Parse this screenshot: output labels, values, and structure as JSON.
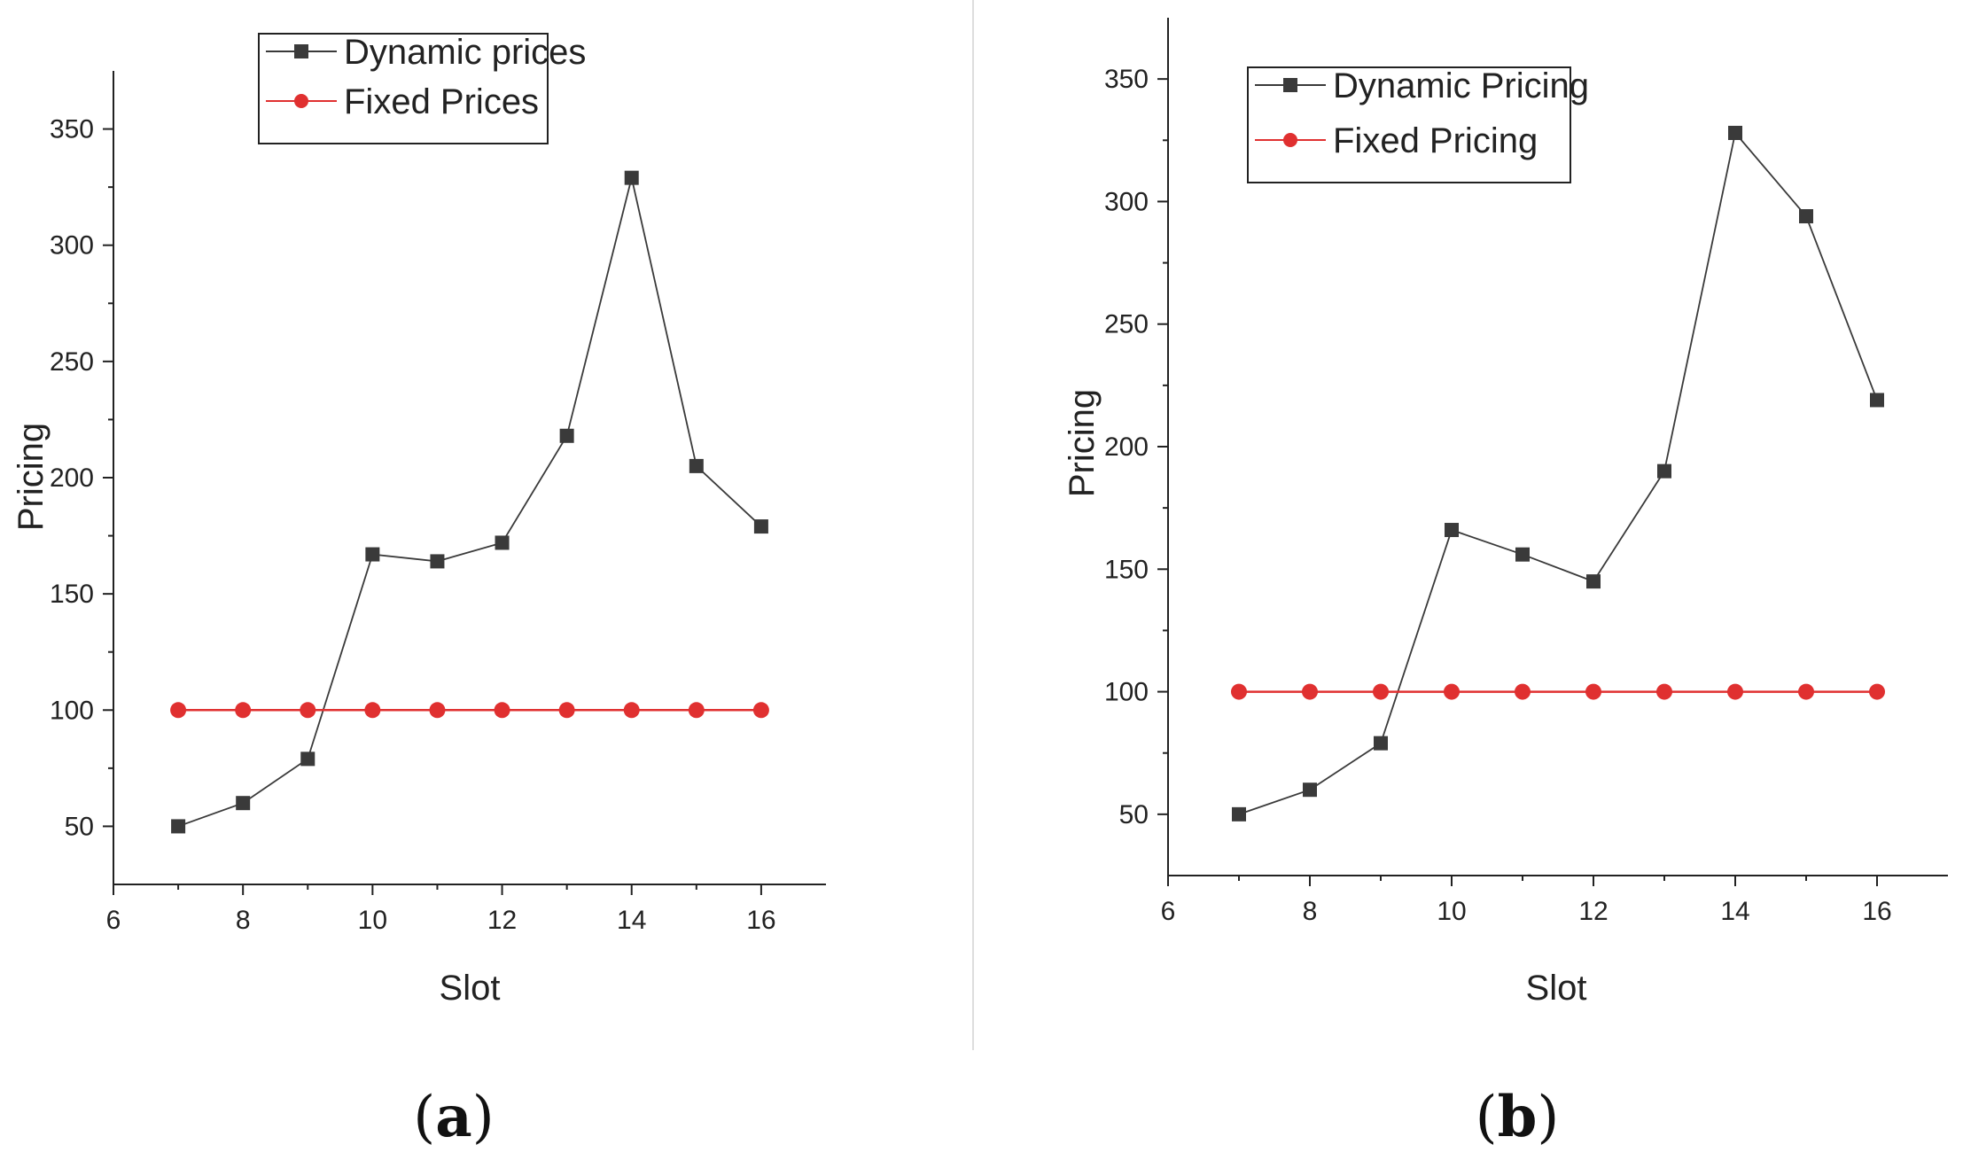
{
  "figure": {
    "divider_color": "#dddddd",
    "colors": {
      "dynamic": "#3a3a3a",
      "fixed": "#e03030",
      "axis": "#222222"
    }
  },
  "chart_data": [
    {
      "type": "line",
      "panel": "a",
      "panel_label": {
        "open": "(",
        "letter": "a",
        "close": ")"
      },
      "xlabel": "Slot",
      "ylabel": "Pricing",
      "xlim": [
        6,
        17
      ],
      "ylim": [
        25,
        375
      ],
      "x_ticks": [
        6,
        8,
        10,
        12,
        14,
        16
      ],
      "y_ticks": [
        50,
        100,
        150,
        200,
        250,
        300,
        350
      ],
      "legend_position": "top-center",
      "x": [
        7,
        8,
        9,
        10,
        11,
        12,
        13,
        14,
        15,
        16
      ],
      "series": [
        {
          "name": "Dynamic prices",
          "marker": "square",
          "color": "#3a3a3a",
          "values": [
            50,
            60,
            79,
            167,
            164,
            172,
            218,
            329,
            205,
            179
          ]
        },
        {
          "name": "Fixed Prices",
          "marker": "circle",
          "color": "#e03030",
          "values": [
            100,
            100,
            100,
            100,
            100,
            100,
            100,
            100,
            100,
            100
          ]
        }
      ]
    },
    {
      "type": "line",
      "panel": "b",
      "panel_label": {
        "open": "(",
        "letter": "b",
        "close": ")"
      },
      "xlabel": "Slot",
      "ylabel": "Pricing",
      "xlim": [
        6,
        17
      ],
      "ylim": [
        25,
        375
      ],
      "x_ticks": [
        6,
        8,
        10,
        12,
        14,
        16
      ],
      "y_ticks": [
        50,
        100,
        150,
        200,
        250,
        300,
        350
      ],
      "legend_position": "top-left",
      "x": [
        7,
        8,
        9,
        10,
        11,
        12,
        13,
        14,
        15,
        16
      ],
      "series": [
        {
          "name": "Dynamic Pricing",
          "marker": "square",
          "color": "#3a3a3a",
          "values": [
            50,
            60,
            79,
            166,
            156,
            145,
            190,
            328,
            294,
            219
          ]
        },
        {
          "name": "Fixed Pricing",
          "marker": "circle",
          "color": "#e03030",
          "values": [
            100,
            100,
            100,
            100,
            100,
            100,
            100,
            100,
            100,
            100
          ]
        }
      ]
    }
  ]
}
